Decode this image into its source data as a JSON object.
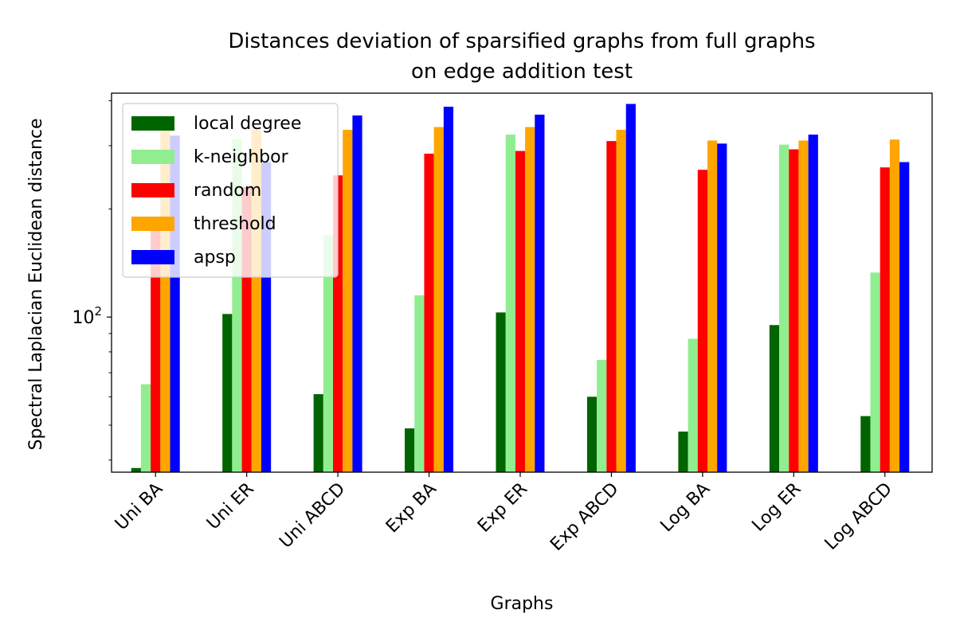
{
  "chart_data": {
    "type": "bar",
    "title_lines": [
      "Distances deviation of sparsified graphs from full graphs",
      "on edge addition test"
    ],
    "xlabel": "Graphs",
    "ylabel": "Spectral Laplacian Euclidean distance",
    "yscale": "log",
    "ylim": [
      37,
      420
    ],
    "y_tick_labels": [
      {
        "value": 100,
        "base": "10",
        "exp": "2"
      }
    ],
    "legend_position": "upper-left",
    "categories": [
      "Uni BA",
      "Uni ER",
      "Uni ABCD",
      "Exp BA",
      "Exp ER",
      "Exp ABCD",
      "Log BA",
      "Log ER",
      "Log ABCD"
    ],
    "series": [
      {
        "name": "local degree",
        "color": "#006400",
        "values": [
          38,
          102,
          61,
          49,
          103,
          60,
          48,
          95,
          53
        ]
      },
      {
        "name": "k-neighbor",
        "color": "#90ee90",
        "values": [
          65,
          313,
          169,
          115,
          322,
          76,
          87,
          302,
          133
        ]
      },
      {
        "name": "random",
        "color": "#ff0000",
        "values": [
          179,
          230,
          248,
          285,
          290,
          309,
          257,
          293,
          261
        ]
      },
      {
        "name": "threshold",
        "color": "#ffa500",
        "values": [
          332,
          332,
          332,
          338,
          338,
          332,
          310,
          310,
          312
        ]
      },
      {
        "name": "apsp",
        "color": "#0000ff",
        "values": [
          320,
          270,
          364,
          385,
          366,
          392,
          304,
          322,
          270
        ]
      }
    ]
  }
}
